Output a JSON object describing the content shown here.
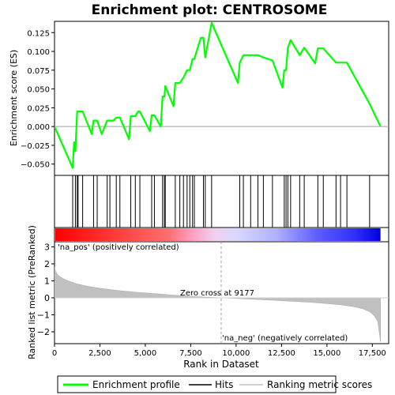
{
  "chart_data": {
    "type": "line",
    "title": "Enrichment plot: CENTROSOME",
    "panels": {
      "es": {
        "ylabel": "Enrichment score (ES)",
        "ylim": [
          -0.065,
          0.14
        ],
        "yticks": [
          "0.125",
          "0.100",
          "0.075",
          "0.050",
          "0.025",
          "0.000",
          "−0.025",
          "−0.050"
        ],
        "ytick_values": [
          0.125,
          0.1,
          0.075,
          0.05,
          0.025,
          0.0,
          -0.025,
          -0.05
        ],
        "series": [
          {
            "name": "Enrichment profile",
            "color": "#00ff00",
            "x": [
              0,
              1000,
              1080,
              1150,
              1250,
              1300,
              1550,
              2050,
              2150,
              2350,
              2600,
              2900,
              3050,
              3250,
              3400,
              3600,
              4100,
              4200,
              4450,
              4600,
              4700,
              5250,
              5350,
              5500,
              5850,
              5950,
              6050,
              6100,
              6550,
              6650,
              6900,
              7100,
              7300,
              7450,
              7600,
              7700,
              8050,
              8200,
              8300,
              8650,
              10100,
              10200,
              10400,
              10800,
              11200,
              11500,
              12000,
              12550,
              12650,
              12750,
              12850,
              13000,
              13500,
              13750,
              14350,
              14500,
              14800,
              15500,
              15750,
              16100,
              17350,
              17950
            ],
            "y": [
              0.0,
              -0.055,
              -0.021,
              -0.033,
              0.02,
              0.02,
              0.02,
              -0.01,
              0.008,
              0.008,
              -0.01,
              0.008,
              0.008,
              0.008,
              0.012,
              0.012,
              -0.017,
              0.014,
              0.014,
              0.02,
              0.02,
              -0.006,
              0.015,
              0.015,
              0.0,
              0.04,
              0.04,
              0.054,
              0.027,
              0.058,
              0.058,
              0.065,
              0.075,
              0.075,
              0.09,
              0.09,
              0.118,
              0.118,
              0.092,
              0.138,
              0.058,
              0.085,
              0.095,
              0.095,
              0.095,
              0.092,
              0.088,
              0.052,
              0.075,
              0.075,
              0.105,
              0.115,
              0.095,
              0.105,
              0.084,
              0.104,
              0.104,
              0.085,
              0.085,
              0.085,
              0.03,
              0.0
            ]
          }
        ]
      },
      "hits": {
        "name": "Hits",
        "x": [
          1000,
          1150,
          1250,
          1300,
          1550,
          2150,
          2350,
          2900,
          3050,
          3400,
          3600,
          4200,
          4450,
          4700,
          5350,
          5500,
          5950,
          6050,
          6100,
          6650,
          6900,
          7100,
          7300,
          7450,
          7600,
          7700,
          8200,
          8300,
          8650,
          10200,
          10400,
          10800,
          11200,
          11500,
          12000,
          12650,
          12750,
          12850,
          13000,
          13500,
          13750,
          14500,
          14800,
          15500,
          15750,
          16100,
          17350
        ]
      },
      "rank_metric": {
        "ylabel": "Ranked list metric (PreRanked)",
        "ylim": [
          -2.7,
          3.3
        ],
        "yticks": [
          "3",
          "2",
          "1",
          "0",
          "−1",
          "−2"
        ],
        "ytick_values": [
          3,
          2,
          1,
          0,
          -1,
          -2
        ],
        "series_name": "Ranking metric scores",
        "x": [
          0,
          50,
          150,
          300,
          500,
          800,
          1200,
          1800,
          2500,
          3500,
          4500,
          5500,
          6500,
          7500,
          8500,
          9177,
          10000,
          11000,
          12000,
          13000,
          14000,
          15000,
          15800,
          16500,
          17000,
          17350,
          17600,
          17800,
          17950
        ],
        "y": [
          1.8,
          1.6,
          1.4,
          1.25,
          1.12,
          0.98,
          0.83,
          0.68,
          0.56,
          0.43,
          0.33,
          0.25,
          0.16,
          0.08,
          0.03,
          0.0,
          -0.04,
          -0.09,
          -0.14,
          -0.2,
          -0.26,
          -0.34,
          -0.42,
          -0.53,
          -0.66,
          -0.82,
          -1.05,
          -1.4,
          -2.6
        ],
        "zero_cross_label": "Zero cross at 9177",
        "zero_cross_x": 9177,
        "pos_label": "'na_pos' (positively correlated)",
        "neg_label": "'na_neg' (negatively correlated)"
      }
    },
    "xlabel": "Rank in Dataset",
    "xlim": [
      0,
      18400
    ],
    "xticks": [
      "0",
      "2,500",
      "5,000",
      "7,500",
      "10,000",
      "12,500",
      "15,000",
      "17,500"
    ],
    "xtick_values": [
      0,
      2500,
      5000,
      7500,
      10000,
      12500,
      15000,
      17500
    ],
    "legend": {
      "placement": "bottom",
      "entries": [
        "Enrichment profile",
        "Hits",
        "Ranking metric scores"
      ]
    },
    "colors": {
      "profile": "#00ff00",
      "hit": "#000000",
      "metric_fill": "#c0c0c0",
      "pos_label": "#ff0000",
      "neg_label": "#0000ff"
    }
  }
}
